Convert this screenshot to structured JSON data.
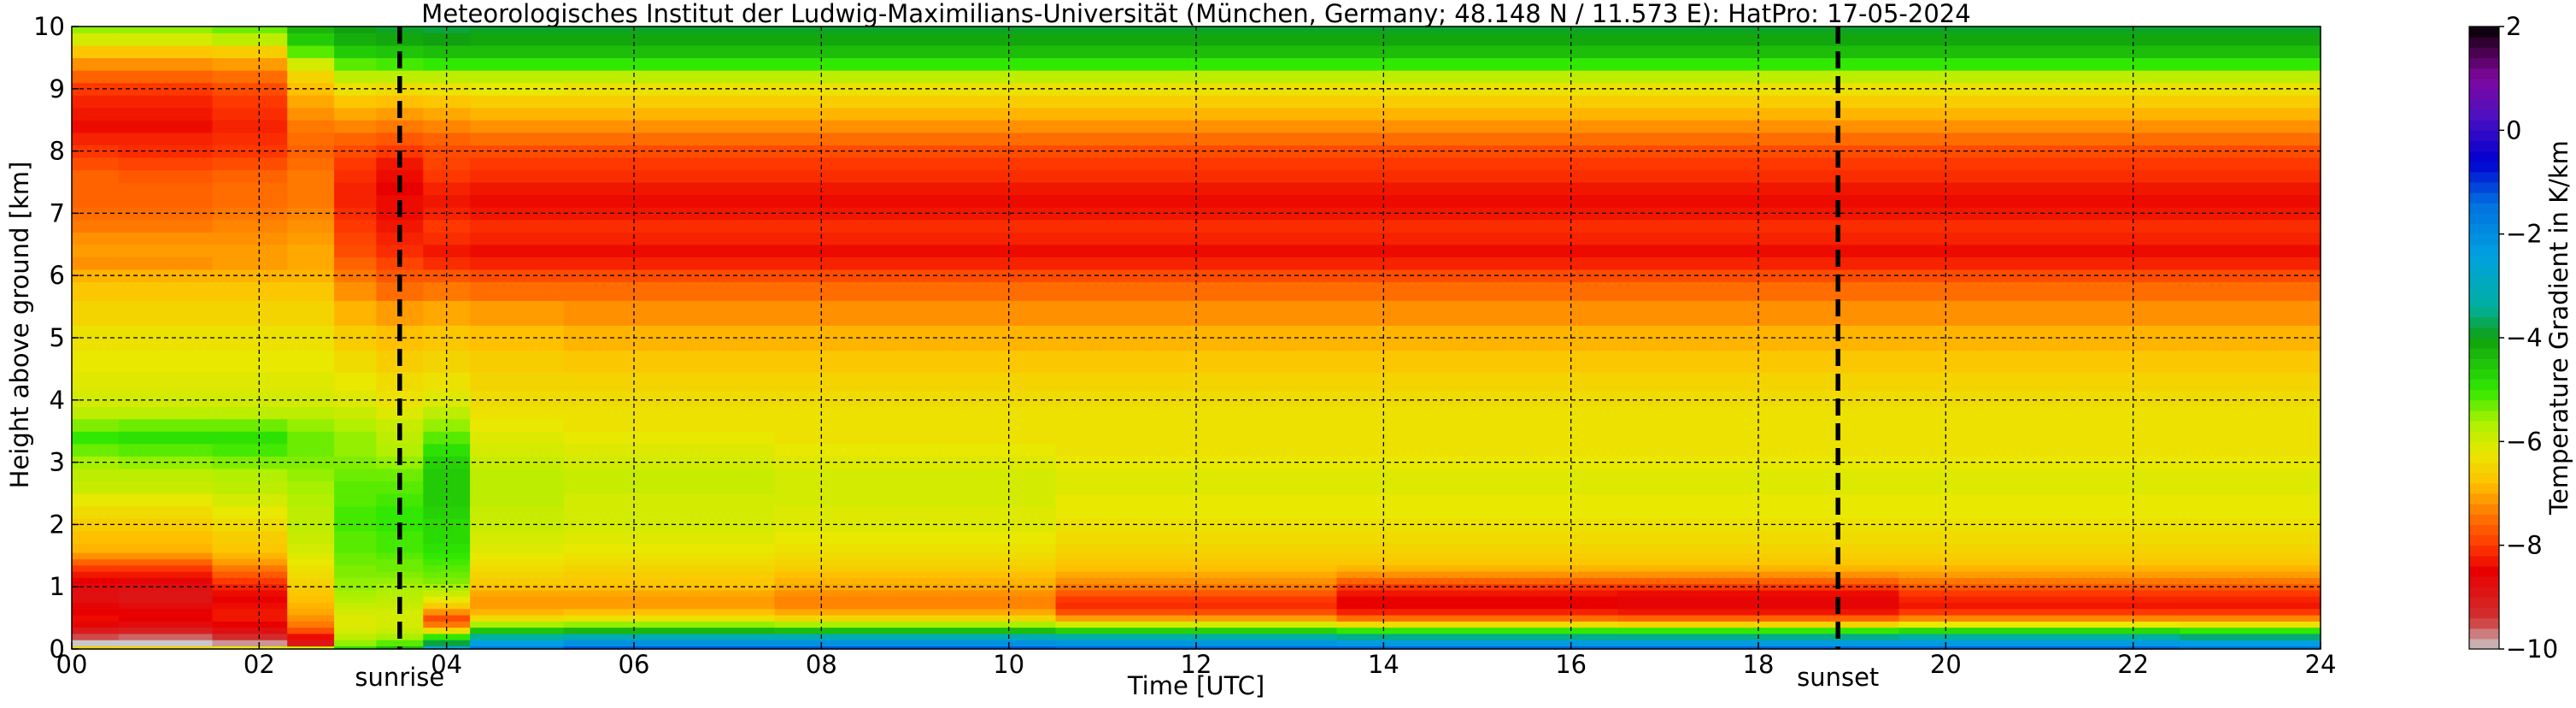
{
  "chart_data": {
    "type": "heatmap",
    "title": "Meteorologisches Institut der Ludwig-Maximilians-Universität (München, Germany; 48.148 N / 11.573 E):    HatPro: 17-05-2024",
    "xlabel": "Time [UTC]",
    "ylabel": "Height above ground [km]",
    "xlim": [
      0,
      24
    ],
    "ylim": [
      0,
      10
    ],
    "x_ticks": [
      0,
      2,
      4,
      6,
      8,
      10,
      12,
      14,
      16,
      18,
      20,
      22,
      24
    ],
    "x_tick_labels": [
      "00",
      "02",
      "04",
      "06",
      "08",
      "10",
      "12",
      "14",
      "16",
      "18",
      "20",
      "22",
      "24"
    ],
    "y_ticks": [
      0,
      1,
      2,
      3,
      4,
      5,
      6,
      7,
      8,
      9,
      10
    ],
    "y_tick_labels": [
      "0",
      "1",
      "2",
      "3",
      "4",
      "5",
      "6",
      "7",
      "8",
      "9",
      "10"
    ],
    "grid": true,
    "markers": [
      {
        "label": "sunrise",
        "x": 3.5
      },
      {
        "label": "sunset",
        "x": 18.85
      }
    ],
    "colorbar": {
      "label": "Temperature Gradient in K/km",
      "range": [
        -10,
        2
      ],
      "ticks": [
        -10,
        -8,
        -6,
        -4,
        -2,
        0,
        2
      ],
      "tick_labels": [
        "−10",
        "−8",
        "−6",
        "−4",
        "−2",
        "0",
        "2"
      ],
      "stops": [
        {
          "value": -10,
          "color": "#c8c8c8"
        },
        {
          "value": -9.4,
          "color": "#d03030"
        },
        {
          "value": -8.5,
          "color": "#e80000"
        },
        {
          "value": -8,
          "color": "#ff3800"
        },
        {
          "value": -7.4,
          "color": "#ff7800"
        },
        {
          "value": -6.8,
          "color": "#ffc000"
        },
        {
          "value": -6.2,
          "color": "#e8e800"
        },
        {
          "value": -5.6,
          "color": "#a8f000"
        },
        {
          "value": -5,
          "color": "#30e800"
        },
        {
          "value": -4,
          "color": "#10a010"
        },
        {
          "value": -3.4,
          "color": "#00b0a0"
        },
        {
          "value": -2.4,
          "color": "#00a0e0"
        },
        {
          "value": -1.4,
          "color": "#0070e0"
        },
        {
          "value": -0.6,
          "color": "#0000d0"
        },
        {
          "value": 0.3,
          "color": "#5010c0"
        },
        {
          "value": 1,
          "color": "#8008a0"
        },
        {
          "value": 1.6,
          "color": "#400040"
        },
        {
          "value": 2,
          "color": "#000000"
        }
      ]
    },
    "height_km": [
      0,
      0.1,
      0.2,
      0.3,
      0.4,
      0.5,
      0.6,
      0.7,
      0.8,
      0.9,
      1,
      1.1,
      1.2,
      1.3,
      1.4,
      1.5,
      1.6,
      1.8,
      2,
      2.2,
      2.4,
      2.6,
      2.8,
      3,
      3.2,
      3.4,
      3.6,
      3.8,
      4,
      4.3,
      4.6,
      5,
      5.4,
      5.8,
      6,
      6.2,
      6.4,
      6.6,
      6.8,
      7,
      7.2,
      7.4,
      7.6,
      7.8,
      8,
      8.2,
      8.4,
      8.6,
      8.8,
      9,
      9.2,
      9.4,
      9.6,
      9.8,
      10
    ],
    "time_profiles": [
      {
        "time_utc": 0,
        "gradient": [
          -6.5,
          -10,
          -9.5,
          -9,
          -8.6,
          -8.4,
          -8.5,
          -8.6,
          -8.8,
          -8.8,
          -8.7,
          -8.5,
          -8.3,
          -8,
          -7.6,
          -7.2,
          -6.9,
          -6.8,
          -6.6,
          -6.4,
          -6.2,
          -5.9,
          -5.8,
          -5.6,
          -5.3,
          -5,
          -5.4,
          -5.8,
          -6,
          -6.1,
          -6.2,
          -6.3,
          -6.5,
          -6.7,
          -6.9,
          -7.2,
          -7.1,
          -7.2,
          -7.4,
          -7.5,
          -7.6,
          -7.6,
          -7.6,
          -7.8,
          -8,
          -8.2,
          -8.4,
          -8.3,
          -8.2,
          -8,
          -7.6,
          -7.2,
          -6.7,
          -6,
          -5.5
        ]
      },
      {
        "time_utc": 1,
        "gradient": [
          -6.5,
          -10,
          -9.6,
          -9.1,
          -8.7,
          -8.5,
          -8.5,
          -8.7,
          -8.9,
          -8.9,
          -8.8,
          -8.6,
          -8.3,
          -8,
          -7.6,
          -7.2,
          -6.9,
          -6.8,
          -6.6,
          -6.4,
          -6.2,
          -5.9,
          -5.8,
          -5.5,
          -5.2,
          -4.9,
          -5.3,
          -5.8,
          -6,
          -6.1,
          -6.2,
          -6.3,
          -6.5,
          -6.7,
          -6.9,
          -7.2,
          -7.1,
          -7.2,
          -7.4,
          -7.5,
          -7.6,
          -7.6,
          -7.7,
          -7.9,
          -8.1,
          -8.2,
          -8.4,
          -8.3,
          -8.2,
          -8,
          -7.6,
          -7.2,
          -6.7,
          -6,
          -5.5
        ]
      },
      {
        "time_utc": 2,
        "gradient": [
          -6.2,
          -9.8,
          -9.3,
          -8.8,
          -8.5,
          -8.3,
          -8.3,
          -8.4,
          -8.5,
          -8.4,
          -8.2,
          -8,
          -7.7,
          -7.4,
          -7.1,
          -6.9,
          -6.7,
          -6.6,
          -6.4,
          -6.2,
          -6,
          -5.8,
          -5.7,
          -5.4,
          -5.1,
          -4.9,
          -5.3,
          -5.8,
          -6,
          -6.1,
          -6.2,
          -6.3,
          -6.5,
          -6.7,
          -6.9,
          -7.1,
          -7.1,
          -7.2,
          -7.3,
          -7.4,
          -7.5,
          -7.5,
          -7.6,
          -7.8,
          -8,
          -8.1,
          -8.2,
          -8.1,
          -8,
          -7.8,
          -7.5,
          -7.1,
          -6.6,
          -5.8,
          -5.3
        ]
      },
      {
        "time_utc": 2.6,
        "gradient": [
          -6,
          -8.9,
          -8.4,
          -7.8,
          -7.4,
          -7.2,
          -7,
          -6.9,
          -6.8,
          -6.7,
          -6.6,
          -6.5,
          -6.4,
          -6.3,
          -6.2,
          -6.1,
          -6,
          -5.9,
          -5.8,
          -5.8,
          -5.7,
          -5.6,
          -5.5,
          -5.4,
          -5.3,
          -5.3,
          -5.5,
          -5.8,
          -6,
          -6.1,
          -6.2,
          -6.3,
          -6.5,
          -6.7,
          -6.9,
          -7,
          -7,
          -7.1,
          -7.2,
          -7.3,
          -7.4,
          -7.4,
          -7.4,
          -7.5,
          -7.6,
          -7.5,
          -7.4,
          -7.2,
          -7,
          -6.8,
          -6.5,
          -6,
          -5.2,
          -4.6,
          -4.3
        ]
      },
      {
        "time_utc": 3,
        "gradient": [
          -4.8,
          -5.5,
          -5.8,
          -6,
          -6.1,
          -6.1,
          -6,
          -5.9,
          -5.7,
          -5.6,
          -5.5,
          -5.5,
          -5.4,
          -5.4,
          -5.3,
          -5.3,
          -5.2,
          -5.2,
          -5.1,
          -5.1,
          -5.2,
          -5.2,
          -5.3,
          -5.4,
          -5.5,
          -5.5,
          -5.7,
          -5.9,
          -6.1,
          -6.2,
          -6.4,
          -6.6,
          -6.9,
          -7.2,
          -7.4,
          -7.6,
          -7.8,
          -7.9,
          -8,
          -8.1,
          -8.2,
          -8.2,
          -8.1,
          -8,
          -7.8,
          -7.6,
          -7.3,
          -7,
          -6.7,
          -6.3,
          -5.8,
          -5.2,
          -4.6,
          -4.2,
          -4
        ]
      },
      {
        "time_utc": 3.5,
        "gradient": [
          -4.3,
          -5.2,
          -5.6,
          -5.9,
          -6,
          -6,
          -6,
          -5.9,
          -5.8,
          -5.7,
          -5.6,
          -5.5,
          -5.4,
          -5.3,
          -5.3,
          -5.2,
          -5.1,
          -5.1,
          -5,
          -5,
          -5.1,
          -5.2,
          -5.3,
          -5.5,
          -5.7,
          -5.8,
          -5.9,
          -6.1,
          -6.3,
          -6.4,
          -6.6,
          -6.8,
          -7.1,
          -7.5,
          -7.7,
          -7.9,
          -8.1,
          -8.2,
          -8.3,
          -8.4,
          -8.4,
          -8.5,
          -8.4,
          -8.3,
          -8,
          -7.7,
          -7.4,
          -7.1,
          -6.8,
          -6.4,
          -5.8,
          -5.1,
          -4.5,
          -4.1,
          -3.9
        ]
      },
      {
        "time_utc": 4,
        "gradient": [
          -2.5,
          -3.8,
          -5,
          -6.4,
          -7.4,
          -7.8,
          -7.2,
          -6.6,
          -6.2,
          -5.9,
          -5.6,
          -5.4,
          -5.3,
          -5.2,
          -5.1,
          -5,
          -4.9,
          -4.8,
          -4.8,
          -4.7,
          -4.6,
          -4.6,
          -4.6,
          -4.7,
          -4.9,
          -5.2,
          -5.5,
          -5.8,
          -6.1,
          -6.3,
          -6.5,
          -6.7,
          -7,
          -7.4,
          -7.7,
          -8.1,
          -8.3,
          -8.1,
          -8,
          -8.2,
          -8.3,
          -8.2,
          -8,
          -7.9,
          -7.8,
          -7.6,
          -7.3,
          -7,
          -6.7,
          -6.3,
          -5.8,
          -5,
          -4.4,
          -4,
          -3.8
        ]
      },
      {
        "time_utc": 4.5,
        "gradient": [
          -1.5,
          -2.4,
          -3.4,
          -4.5,
          -5.6,
          -6.4,
          -6.9,
          -7.1,
          -7.1,
          -7,
          -6.8,
          -6.6,
          -6.5,
          -6.4,
          -6.3,
          -6.2,
          -6.1,
          -6,
          -5.9,
          -5.9,
          -5.8,
          -5.8,
          -5.8,
          -5.9,
          -6,
          -6.1,
          -6.2,
          -6.3,
          -6.4,
          -6.5,
          -6.6,
          -6.8,
          -7.1,
          -7.5,
          -7.8,
          -8.2,
          -8.4,
          -8.2,
          -8.1,
          -8.3,
          -8.4,
          -8.3,
          -8.1,
          -8,
          -7.8,
          -7.5,
          -7.2,
          -6.9,
          -6.6,
          -6.2,
          -5.8,
          -5,
          -4.4,
          -4.1,
          -3.9
        ]
      },
      {
        "time_utc": 6,
        "gradient": [
          -1.2,
          -2.1,
          -3.1,
          -4.3,
          -5.5,
          -6.3,
          -6.8,
          -7.1,
          -7.1,
          -7,
          -6.8,
          -6.7,
          -6.6,
          -6.5,
          -6.4,
          -6.3,
          -6.2,
          -6.1,
          -6,
          -6,
          -6,
          -5.9,
          -5.9,
          -6,
          -6.1,
          -6.2,
          -6.3,
          -6.3,
          -6.4,
          -6.5,
          -6.7,
          -6.9,
          -7.2,
          -7.5,
          -7.8,
          -8.2,
          -8.4,
          -8.2,
          -8.1,
          -8.3,
          -8.4,
          -8.3,
          -8.1,
          -8,
          -7.8,
          -7.5,
          -7.2,
          -6.9,
          -6.6,
          -6.3,
          -5.8,
          -5,
          -4.4,
          -4.1,
          -3.9
        ]
      },
      {
        "time_utc": 9,
        "gradient": [
          -1.2,
          -2.1,
          -3.1,
          -4.4,
          -5.6,
          -6.5,
          -7,
          -7.3,
          -7.3,
          -7.2,
          -7,
          -6.9,
          -6.8,
          -6.6,
          -6.5,
          -6.4,
          -6.3,
          -6.2,
          -6.1,
          -6.1,
          -6,
          -6,
          -6,
          -6.1,
          -6.2,
          -6.3,
          -6.3,
          -6.3,
          -6.4,
          -6.5,
          -6.7,
          -6.9,
          -7.2,
          -7.5,
          -7.8,
          -8.2,
          -8.4,
          -8.2,
          -8.1,
          -8.3,
          -8.4,
          -8.3,
          -8.1,
          -8,
          -7.8,
          -7.5,
          -7.2,
          -6.9,
          -6.6,
          -6.3,
          -5.8,
          -5,
          -4.4,
          -4.1,
          -3.9
        ]
      },
      {
        "time_utc": 12,
        "gradient": [
          -1.3,
          -2.2,
          -3.3,
          -4.7,
          -6,
          -7.1,
          -7.8,
          -8.1,
          -8,
          -7.7,
          -7.4,
          -7.2,
          -7,
          -6.8,
          -6.7,
          -6.6,
          -6.5,
          -6.4,
          -6.3,
          -6.2,
          -6.2,
          -6.1,
          -6.1,
          -6.2,
          -6.3,
          -6.3,
          -6.3,
          -6.3,
          -6.4,
          -6.5,
          -6.7,
          -6.9,
          -7.2,
          -7.5,
          -7.8,
          -8.2,
          -8.4,
          -8.2,
          -8.1,
          -8.3,
          -8.4,
          -8.3,
          -8.1,
          -8,
          -7.8,
          -7.5,
          -7.2,
          -6.9,
          -6.6,
          -6.3,
          -5.8,
          -5,
          -4.4,
          -4.1,
          -3.9
        ]
      },
      {
        "time_utc": 15,
        "gradient": [
          -1.3,
          -2.3,
          -3.5,
          -5,
          -6.4,
          -7.5,
          -8.2,
          -8.5,
          -8.5,
          -8.3,
          -8,
          -7.6,
          -7.2,
          -6.9,
          -6.7,
          -6.6,
          -6.5,
          -6.4,
          -6.3,
          -6.2,
          -6.2,
          -6.1,
          -6.1,
          -6.2,
          -6.3,
          -6.3,
          -6.3,
          -6.3,
          -6.4,
          -6.5,
          -6.7,
          -6.9,
          -7.2,
          -7.5,
          -7.8,
          -8.2,
          -8.4,
          -8.2,
          -8.1,
          -8.3,
          -8.4,
          -8.3,
          -8.1,
          -8,
          -7.8,
          -7.5,
          -7.2,
          -6.9,
          -6.6,
          -6.3,
          -5.8,
          -5,
          -4.4,
          -4.1,
          -3.9
        ]
      },
      {
        "time_utc": 18,
        "gradient": [
          -1.3,
          -2.3,
          -3.5,
          -5,
          -6.5,
          -7.6,
          -8.3,
          -8.6,
          -8.6,
          -8.4,
          -8,
          -7.6,
          -7.2,
          -6.9,
          -6.7,
          -6.6,
          -6.5,
          -6.4,
          -6.3,
          -6.2,
          -6.2,
          -6.1,
          -6.1,
          -6.2,
          -6.3,
          -6.3,
          -6.3,
          -6.3,
          -6.4,
          -6.5,
          -6.7,
          -6.9,
          -7.2,
          -7.5,
          -7.8,
          -8.2,
          -8.4,
          -8.2,
          -8.1,
          -8.3,
          -8.4,
          -8.3,
          -8.1,
          -8,
          -7.8,
          -7.5,
          -7.2,
          -6.9,
          -6.6,
          -6.3,
          -5.8,
          -5,
          -4.4,
          -4.1,
          -3.9
        ]
      },
      {
        "time_utc": 21,
        "gradient": [
          -1.3,
          -2.3,
          -3.4,
          -4.8,
          -6.2,
          -7.3,
          -8,
          -8.3,
          -8.2,
          -8,
          -7.7,
          -7.4,
          -7.1,
          -6.9,
          -6.7,
          -6.6,
          -6.5,
          -6.4,
          -6.3,
          -6.2,
          -6.2,
          -6.1,
          -6.1,
          -6.2,
          -6.3,
          -6.3,
          -6.3,
          -6.3,
          -6.4,
          -6.5,
          -6.7,
          -6.9,
          -7.2,
          -7.5,
          -7.8,
          -8.2,
          -8.4,
          -8.2,
          -8.1,
          -8.3,
          -8.4,
          -8.3,
          -8.1,
          -8,
          -7.8,
          -7.5,
          -7.2,
          -6.9,
          -6.6,
          -6.3,
          -5.8,
          -5,
          -4.4,
          -4.1,
          -3.9
        ]
      },
      {
        "time_utc": 24,
        "gradient": [
          -1.4,
          -2.4,
          -3.6,
          -5,
          -6.3,
          -7.3,
          -8,
          -8.3,
          -8.2,
          -8,
          -7.7,
          -7.4,
          -7.1,
          -6.9,
          -6.7,
          -6.6,
          -6.5,
          -6.4,
          -6.3,
          -6.2,
          -6.2,
          -6.1,
          -6.1,
          -6.2,
          -6.3,
          -6.3,
          -6.3,
          -6.3,
          -6.4,
          -6.5,
          -6.7,
          -6.9,
          -7.2,
          -7.5,
          -7.8,
          -8.2,
          -8.4,
          -8.2,
          -8.1,
          -8.3,
          -8.4,
          -8.3,
          -8.1,
          -8,
          -7.8,
          -7.5,
          -7.2,
          -6.9,
          -6.6,
          -6.3,
          -5.8,
          -5,
          -4.4,
          -4.1,
          -3.9
        ]
      }
    ]
  }
}
